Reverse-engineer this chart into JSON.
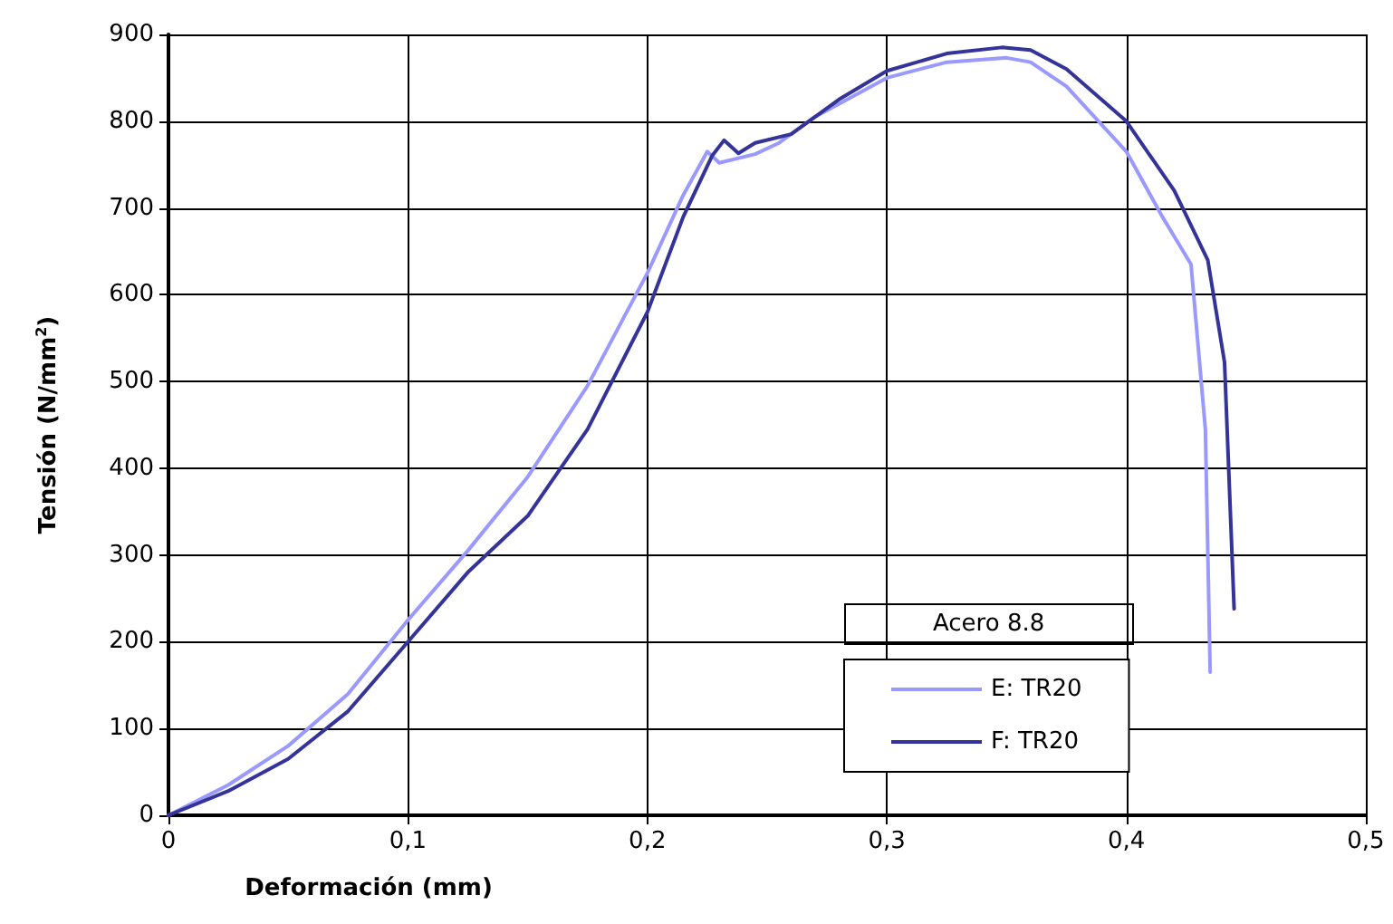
{
  "chart_data": {
    "type": "line",
    "xlabel": "Deformación (mm)",
    "ylabel": "Tensión (N/mm$^{2}$)",
    "legend_title": "Acero 8.8",
    "legend": "bottom right",
    "grid": true,
    "marker": "none",
    "line_style": "solid",
    "xlim": [
      0,
      0.5
    ],
    "xticks": [
      0,
      {
        "value": 0.1,
        "label": "0,1"
      },
      {
        "value": 0.2,
        "label": "0,2"
      },
      {
        "value": 0.3,
        "label": "0,3"
      },
      {
        "value": 0.4,
        "label": "0,4"
      },
      {
        "value": 0.5,
        "label": "0,5"
      }
    ],
    "ylim": [
      0,
      900
    ],
    "yticks": [
      0,
      100,
      200,
      300,
      400,
      500,
      600,
      700,
      800,
      900
    ],
    "series": [
      {
        "name": "E: TR20",
        "color": "#9999ff",
        "x": [
          0,
          0.025,
          0.05,
          0.075,
          0.1,
          0.125,
          0.15,
          0.175,
          0.2,
          0.215,
          0.225,
          0.23,
          0.245,
          0.255,
          0.27,
          0.3,
          0.325,
          0.35,
          0.36,
          0.375,
          0.4,
          0.415,
          0.427,
          0.433,
          0.435
        ],
        "values": [
          0,
          35,
          80,
          140,
          225,
          305,
          390,
          495,
          625,
          715,
          765,
          752,
          762,
          775,
          805,
          850,
          868,
          873,
          868,
          840,
          765,
          690,
          635,
          445,
          165
        ]
      },
      {
        "name": "F: TR20",
        "color": "#333399",
        "x": [
          0,
          0.025,
          0.05,
          0.075,
          0.1,
          0.125,
          0.15,
          0.175,
          0.2,
          0.215,
          0.227,
          0.232,
          0.238,
          0.245,
          0.26,
          0.28,
          0.3,
          0.325,
          0.348,
          0.36,
          0.375,
          0.4,
          0.42,
          0.434,
          0.441,
          0.445
        ],
        "values": [
          0,
          28,
          65,
          120,
          200,
          280,
          345,
          445,
          580,
          690,
          760,
          778,
          763,
          775,
          785,
          825,
          858,
          878,
          885,
          882,
          860,
          800,
          720,
          640,
          522,
          238
        ]
      }
    ]
  }
}
